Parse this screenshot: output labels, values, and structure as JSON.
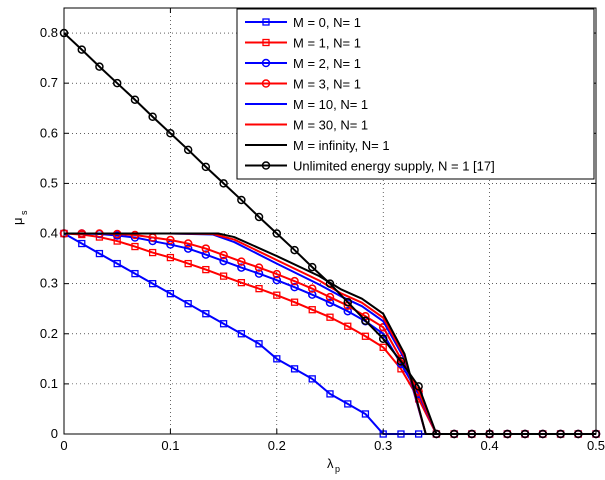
{
  "chart_data": {
    "type": "line",
    "xlabel_main": "λ",
    "xlabel_sub": "p",
    "ylabel_main": "μ",
    "ylabel_sub": "s",
    "xlim": [
      0,
      0.5
    ],
    "ylim": [
      0,
      0.85
    ],
    "xticks": [
      0,
      0.1,
      0.2,
      0.3,
      0.4,
      0.5
    ],
    "xtick_labels": [
      "0",
      "0.1",
      "0.2",
      "0.3",
      "0.4",
      "0.5"
    ],
    "yticks": [
      0,
      0.1,
      0.2,
      0.3,
      0.4,
      0.5,
      0.6,
      0.7,
      0.8
    ],
    "ytick_labels": [
      "0",
      "0.1",
      "0.2",
      "0.3",
      "0.4",
      "0.5",
      "0.6",
      "0.7",
      "0.8"
    ],
    "grid": true,
    "legend_position": "top-right",
    "series": [
      {
        "name": "M = 0, N= 1",
        "color": "#0000ff",
        "marker": "square",
        "x": [
          0,
          0.0167,
          0.0333,
          0.05,
          0.0667,
          0.0833,
          0.1,
          0.1167,
          0.1333,
          0.15,
          0.1667,
          0.1833,
          0.2,
          0.2167,
          0.2333,
          0.25,
          0.2667,
          0.2833,
          0.3,
          0.3167,
          0.3333,
          0.35,
          0.3667,
          0.3833,
          0.4,
          0.4167,
          0.4333,
          0.45,
          0.4667,
          0.4833,
          0.5
        ],
        "y": [
          0.4,
          0.38,
          0.36,
          0.34,
          0.32,
          0.3,
          0.28,
          0.26,
          0.24,
          0.22,
          0.2,
          0.18,
          0.15,
          0.13,
          0.11,
          0.08,
          0.06,
          0.04,
          0,
          0,
          0,
          0,
          0,
          0,
          0,
          0,
          0,
          0,
          0,
          0,
          0
        ]
      },
      {
        "name": "M = 1, N= 1",
        "color": "#ff0000",
        "marker": "square",
        "x": [
          0,
          0.0167,
          0.0333,
          0.05,
          0.0667,
          0.0833,
          0.1,
          0.1167,
          0.1333,
          0.15,
          0.1667,
          0.1833,
          0.2,
          0.2167,
          0.2333,
          0.25,
          0.2667,
          0.2833,
          0.3,
          0.3167,
          0.3333,
          0.35,
          0.3667,
          0.3833,
          0.4,
          0.4167,
          0.4333,
          0.45,
          0.4667,
          0.4833,
          0.5
        ],
        "y": [
          0.4,
          0.398,
          0.393,
          0.385,
          0.374,
          0.362,
          0.352,
          0.34,
          0.328,
          0.315,
          0.302,
          0.29,
          0.277,
          0.263,
          0.248,
          0.233,
          0.215,
          0.195,
          0.173,
          0.13,
          0.07,
          0,
          0,
          0,
          0,
          0,
          0,
          0,
          0,
          0,
          0
        ]
      },
      {
        "name": "M = 2, N= 1",
        "color": "#0000ff",
        "marker": "circle",
        "x": [
          0,
          0.0167,
          0.0333,
          0.05,
          0.0667,
          0.0833,
          0.1,
          0.1167,
          0.1333,
          0.15,
          0.1667,
          0.1833,
          0.2,
          0.2167,
          0.2333,
          0.25,
          0.2667,
          0.2833,
          0.3,
          0.3167,
          0.3333,
          0.35,
          0.3667,
          0.3833,
          0.4,
          0.4167,
          0.4333,
          0.45,
          0.4667,
          0.4833,
          0.5
        ],
        "y": [
          0.4,
          0.4,
          0.399,
          0.396,
          0.392,
          0.385,
          0.378,
          0.37,
          0.358,
          0.345,
          0.332,
          0.32,
          0.307,
          0.293,
          0.278,
          0.262,
          0.245,
          0.225,
          0.2,
          0.14,
          0.08,
          0,
          0,
          0,
          0,
          0,
          0,
          0,
          0,
          0,
          0
        ]
      },
      {
        "name": "M = 3, N= 1",
        "color": "#ff0000",
        "marker": "circle",
        "x": [
          0,
          0.0167,
          0.0333,
          0.05,
          0.0667,
          0.0833,
          0.1,
          0.1167,
          0.1333,
          0.15,
          0.1667,
          0.1833,
          0.2,
          0.2167,
          0.2333,
          0.25,
          0.2667,
          0.2833,
          0.3,
          0.3167,
          0.3333,
          0.35,
          0.3667,
          0.3833,
          0.4,
          0.4167,
          0.4333,
          0.45,
          0.4667,
          0.4833,
          0.5
        ],
        "y": [
          0.4,
          0.4,
          0.4,
          0.399,
          0.397,
          0.392,
          0.387,
          0.38,
          0.37,
          0.357,
          0.344,
          0.332,
          0.319,
          0.305,
          0.29,
          0.273,
          0.256,
          0.235,
          0.213,
          0.15,
          0.085,
          0,
          0,
          0,
          0,
          0,
          0,
          0,
          0,
          0,
          0
        ]
      },
      {
        "name": "M = 10, N= 1",
        "color": "#0000ff",
        "marker": "none",
        "x": [
          0,
          0.05,
          0.1,
          0.14,
          0.16,
          0.2,
          0.24,
          0.26,
          0.28,
          0.3,
          0.32,
          0.34,
          0.5
        ],
        "y": [
          0.4,
          0.4,
          0.4,
          0.398,
          0.383,
          0.34,
          0.298,
          0.275,
          0.255,
          0.225,
          0.15,
          0,
          0
        ]
      },
      {
        "name": "M = 30, N= 1",
        "color": "#ff0000",
        "marker": "none",
        "x": [
          0,
          0.05,
          0.1,
          0.14,
          0.16,
          0.2,
          0.24,
          0.26,
          0.28,
          0.3,
          0.32,
          0.34,
          0.5
        ],
        "y": [
          0.4,
          0.4,
          0.4,
          0.399,
          0.388,
          0.347,
          0.306,
          0.281,
          0.262,
          0.232,
          0.155,
          0,
          0
        ]
      },
      {
        "name": "M = infinity, N= 1",
        "color": "#000000",
        "marker": "none",
        "x": [
          0,
          0.05,
          0.1,
          0.145,
          0.16,
          0.2,
          0.24,
          0.26,
          0.28,
          0.3,
          0.32,
          0.34,
          0.5
        ],
        "y": [
          0.4,
          0.4,
          0.4,
          0.4,
          0.393,
          0.355,
          0.315,
          0.289,
          0.27,
          0.24,
          0.16,
          0,
          0
        ]
      },
      {
        "name": "Unlimited energy supply, N = 1 [17]",
        "color": "#000000",
        "marker": "circle",
        "x": [
          0,
          0.0167,
          0.0333,
          0.05,
          0.0667,
          0.0833,
          0.1,
          0.1167,
          0.1333,
          0.15,
          0.1667,
          0.1833,
          0.2,
          0.2167,
          0.2333,
          0.25,
          0.2667,
          0.2833,
          0.3,
          0.3167,
          0.3333,
          0.35,
          0.3667,
          0.3833,
          0.4,
          0.4167,
          0.4333,
          0.45,
          0.4667,
          0.4833,
          0.5
        ],
        "y": [
          0.8,
          0.767,
          0.733,
          0.7,
          0.667,
          0.633,
          0.6,
          0.567,
          0.533,
          0.5,
          0.467,
          0.433,
          0.4,
          0.367,
          0.333,
          0.3,
          0.263,
          0.226,
          0.19,
          0.145,
          0.095,
          0,
          0,
          0,
          0,
          0,
          0,
          0,
          0,
          0,
          0
        ]
      }
    ]
  }
}
